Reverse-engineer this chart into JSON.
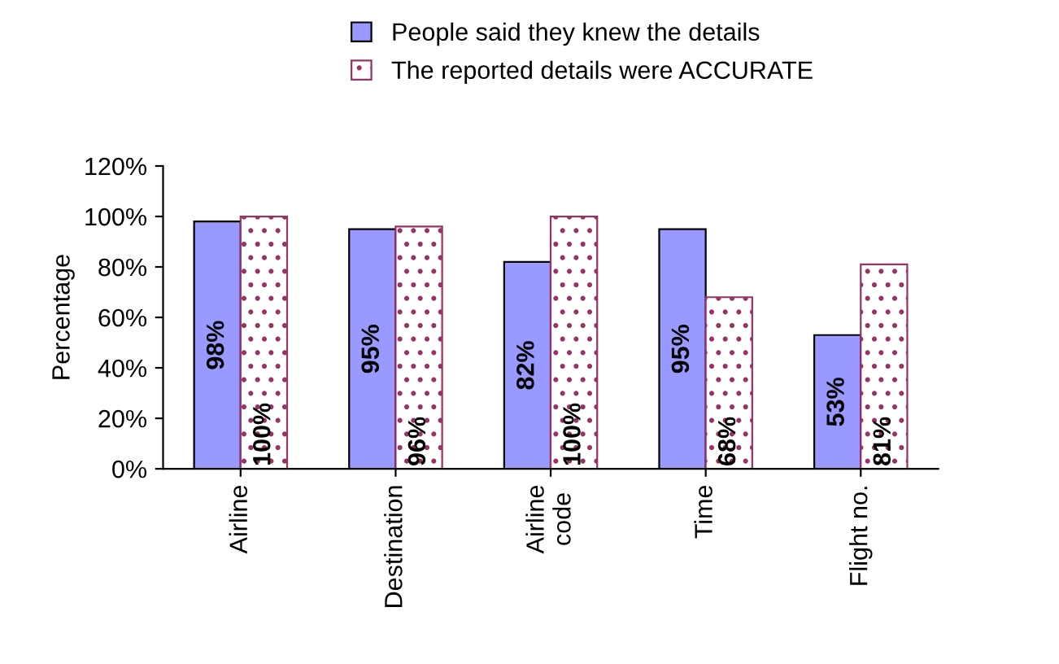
{
  "chart_data": {
    "type": "bar",
    "ylabel": "Percentage",
    "categories": [
      "Airline",
      "Destination",
      "Airline\ncode",
      "Time",
      "Flight no."
    ],
    "series": [
      {
        "name": "People said they knew the details",
        "color": "#9999ff",
        "values": [
          98,
          95,
          82,
          95,
          53
        ],
        "value_labels": [
          "98%",
          "95%",
          "82%",
          "95%",
          "53%"
        ]
      },
      {
        "name": "The reported details were ACCURATE",
        "color": "#993366",
        "values": [
          100,
          96,
          100,
          68,
          81
        ],
        "value_labels": [
          "100%",
          "96%",
          "100%",
          "68%",
          "81%"
        ]
      }
    ],
    "ylim": [
      0,
      120
    ],
    "yticks": [
      {
        "value": 0,
        "label": "0%"
      },
      {
        "value": 20,
        "label": "20%"
      },
      {
        "value": 40,
        "label": "40%"
      },
      {
        "value": 60,
        "label": "60%"
      },
      {
        "value": 80,
        "label": "80%"
      },
      {
        "value": 100,
        "label": "100%"
      },
      {
        "value": 120,
        "label": "120%"
      }
    ],
    "grid": false,
    "legend": "top"
  }
}
